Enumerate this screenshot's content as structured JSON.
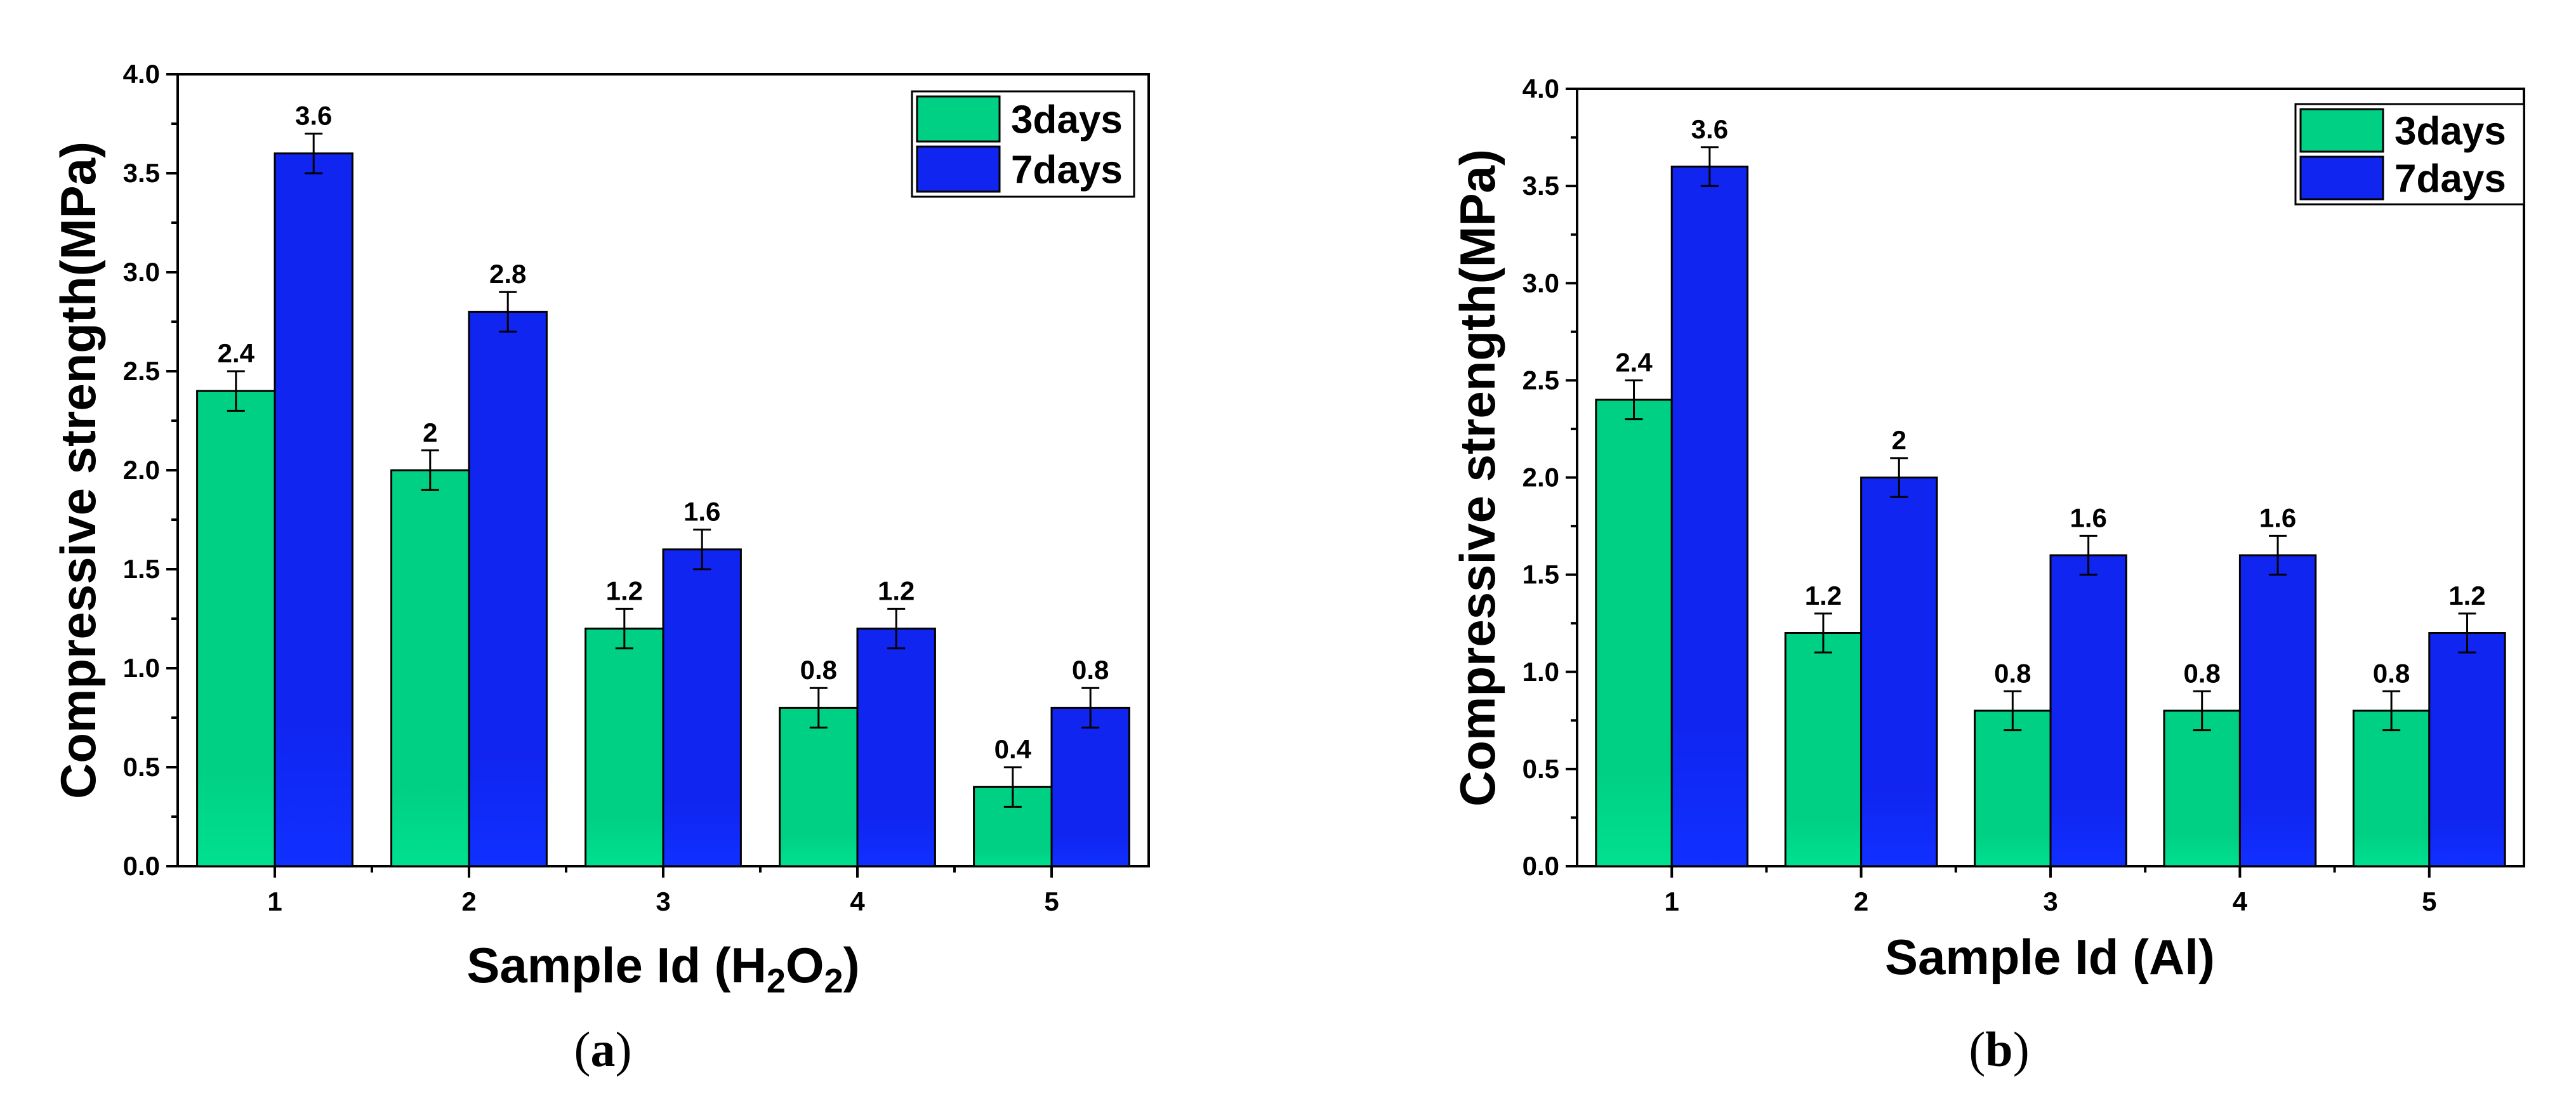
{
  "chart_data": [
    {
      "type": "bar",
      "panel_label": "(a)",
      "panel_letter": "a",
      "categories": [
        "1",
        "2",
        "3",
        "4",
        "5"
      ],
      "series": [
        {
          "name": "3days",
          "values": [
            2.4,
            2.0,
            1.2,
            0.8,
            0.4
          ],
          "errors": [
            0.1,
            0.1,
            0.1,
            0.1,
            0.1
          ],
          "labels": [
            "2.4",
            "2",
            "1.2",
            "0.8",
            "0.4"
          ],
          "color": "#00d084"
        },
        {
          "name": "7days",
          "values": [
            3.6,
            2.8,
            1.6,
            1.2,
            0.8
          ],
          "errors": [
            0.1,
            0.1,
            0.1,
            0.1,
            0.1
          ],
          "labels": [
            "3.6",
            "2.8",
            "1.6",
            "1.2",
            "0.8"
          ],
          "color": "#1025f0"
        }
      ],
      "ylabel": "Compressive strength(MPa)",
      "xlabel_main": "Sample Id (H",
      "xlabel_sub1": "2",
      "xlabel_mid": "O",
      "xlabel_sub2": "2",
      "xlabel_end": ")",
      "ylim": [
        0,
        4.0
      ],
      "yticks": [
        "0.0",
        "0.5",
        "1.0",
        "1.5",
        "2.0",
        "2.5",
        "3.0",
        "3.5",
        "4.0"
      ],
      "legend_position": "top-right"
    },
    {
      "type": "bar",
      "panel_label": "(b)",
      "panel_letter": "b",
      "categories": [
        "1",
        "2",
        "3",
        "4",
        "5"
      ],
      "series": [
        {
          "name": "3days",
          "values": [
            2.4,
            1.2,
            0.8,
            0.8,
            0.8
          ],
          "errors": [
            0.1,
            0.1,
            0.1,
            0.1,
            0.1
          ],
          "labels": [
            "2.4",
            "1.2",
            "0.8",
            "0.8",
            "0.8"
          ],
          "color": "#00d084"
        },
        {
          "name": "7days",
          "values": [
            3.6,
            2.0,
            1.6,
            1.6,
            1.2
          ],
          "errors": [
            0.1,
            0.1,
            0.1,
            0.1,
            0.1
          ],
          "labels": [
            "3.6",
            "2",
            "1.6",
            "1.6",
            "1.2"
          ],
          "color": "#1025f0"
        }
      ],
      "ylabel": "Compressive strength(MPa)",
      "xlabel": "Sample Id (Al)",
      "ylim": [
        0,
        4.0
      ],
      "yticks": [
        "0.0",
        "0.5",
        "1.0",
        "1.5",
        "2.0",
        "2.5",
        "3.0",
        "3.5",
        "4.0"
      ],
      "legend_position": "top-right"
    }
  ]
}
